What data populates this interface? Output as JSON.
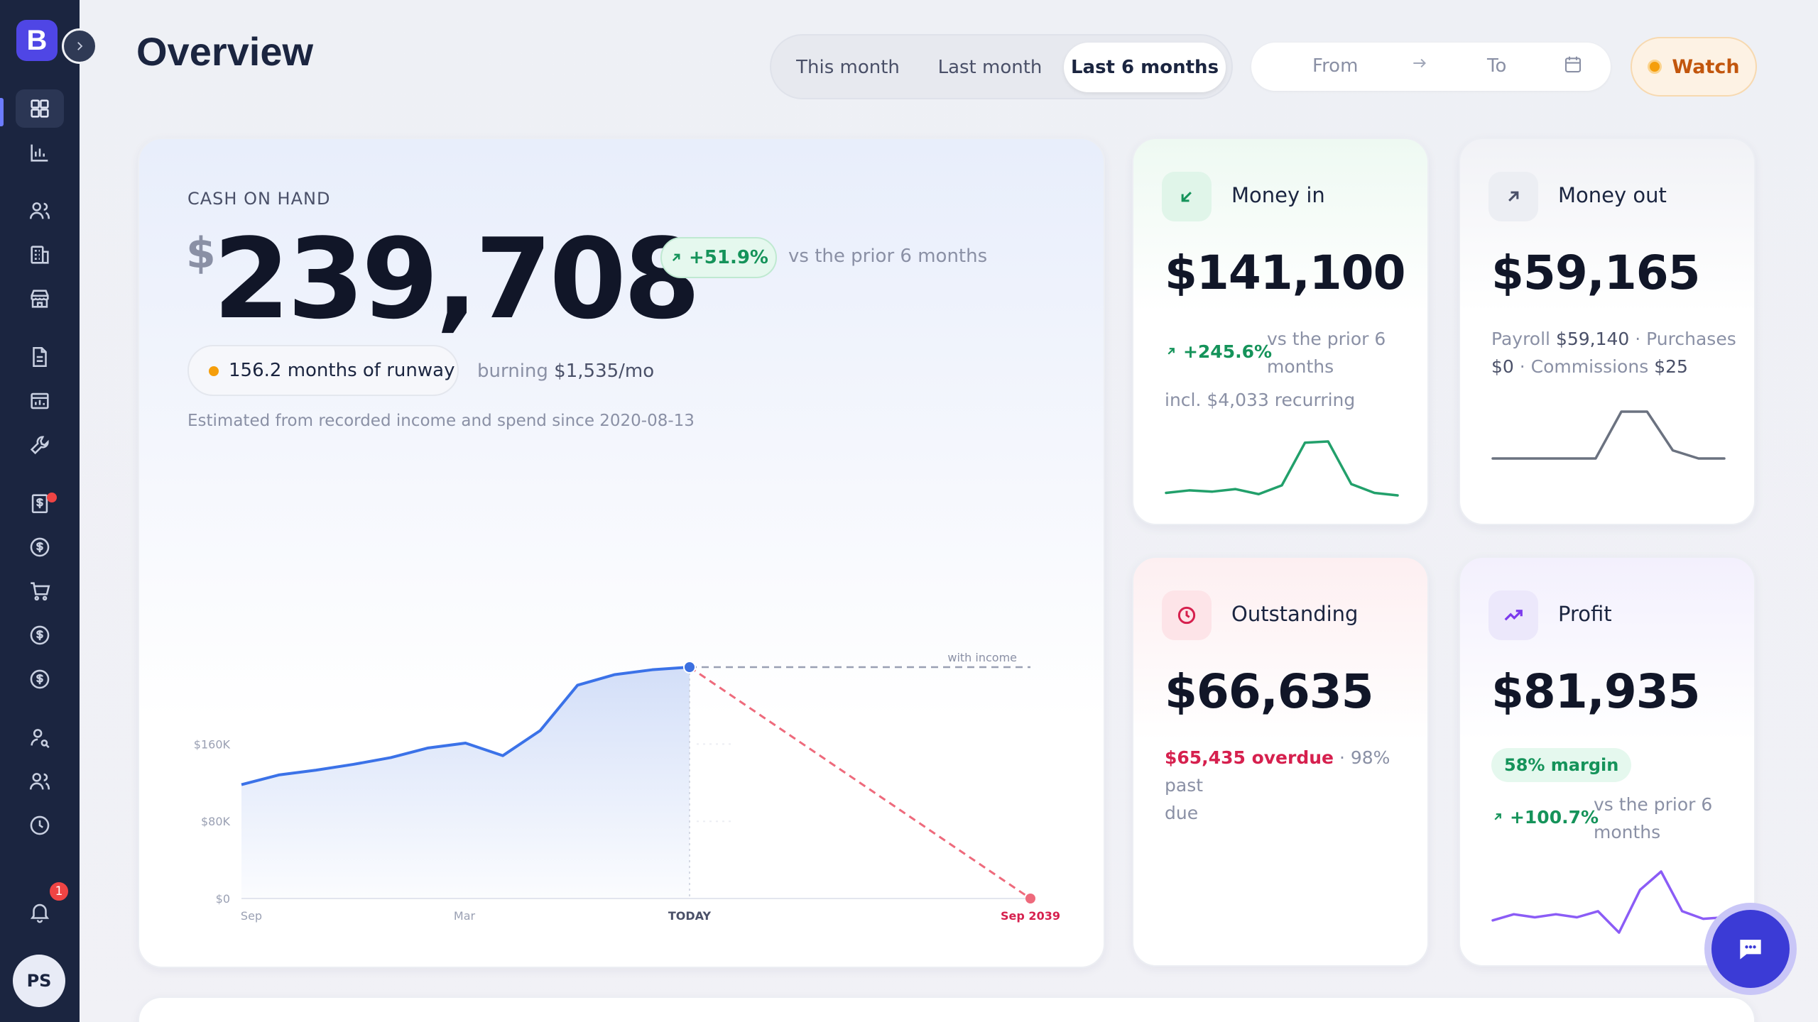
{
  "app": {
    "brand_letter": "B",
    "page_title": "Overview"
  },
  "sidebar": {
    "items": [
      {
        "icon": "grid-icon",
        "active": true
      },
      {
        "icon": "bar-chart-icon"
      },
      {
        "icon": "users-icon"
      },
      {
        "icon": "building-icon"
      },
      {
        "icon": "store-icon"
      },
      {
        "icon": "document-icon"
      },
      {
        "icon": "folder-chart-icon"
      },
      {
        "icon": "wrench-icon"
      },
      {
        "icon": "invoice-icon",
        "has_dot": true
      },
      {
        "icon": "dollar-icon"
      },
      {
        "icon": "cart-icon"
      },
      {
        "icon": "dollar-circle-icon"
      },
      {
        "icon": "dollar-circle-icon"
      },
      {
        "icon": "user-search-icon"
      },
      {
        "icon": "team-icon"
      },
      {
        "icon": "clock-icon"
      }
    ],
    "notifications_count": "1",
    "avatar_initials": "PS"
  },
  "header": {
    "periods": [
      "This month",
      "Last month",
      "Last 6 months"
    ],
    "active_period": "Last 6 months",
    "date_from_placeholder": "From",
    "date_to_placeholder": "To",
    "watch_label": "Watch"
  },
  "cash": {
    "label": "CASH ON HAND",
    "currency": "$",
    "value": "239,708",
    "change": "+51.9%",
    "change_note": "vs the prior 6 months",
    "runway": "156.2 months of runway",
    "burning_prefix": "burning",
    "burning_value": "$1,535/mo",
    "estimate_note": "Estimated from recorded income and spend since 2020-08-13"
  },
  "chart_data": {
    "type": "line",
    "y_ticks": [
      "$0",
      "$80K",
      "$160K"
    ],
    "ylim": [
      0,
      250000
    ],
    "x_labels": [
      "Sep",
      "Mar",
      "TODAY",
      "Sep 2039"
    ],
    "annotation": "with income",
    "series": [
      {
        "values": [
          118000,
          128000,
          133000,
          139000,
          146000,
          156000,
          161000,
          148000,
          174000,
          221000,
          232000,
          237000,
          239708
        ]
      },
      {
        "values": [
          239708,
          0
        ]
      },
      {
        "values": [
          239708,
          239708
        ]
      }
    ]
  },
  "money_in": {
    "title": "Money in",
    "value": "$141,100",
    "change": "+245.6%",
    "change_note_1": "vs the prior 6",
    "change_note_2": "months",
    "recurring": "incl. $4,033 recurring",
    "spark": [
      12,
      14,
      13,
      15,
      11,
      18,
      52,
      53,
      19,
      12,
      10
    ],
    "color": "#22a06b"
  },
  "money_out": {
    "title": "Money out",
    "value": "$59,165",
    "line1_a": "Payroll",
    "line1_b": "$59,140",
    "line1_c": "· Purchases",
    "line2_a": "$0",
    "line2_b": "· Commissions",
    "line2_c": "$25",
    "spark": [
      0,
      0,
      0,
      0,
      0,
      58,
      58,
      10,
      0,
      0
    ],
    "color": "#6b7280"
  },
  "outstanding": {
    "title": "Outstanding",
    "value": "$66,635",
    "overdue": "$65,435 overdue",
    "past_due_1": "· 98% past",
    "past_due_2": "due"
  },
  "profit": {
    "title": "Profit",
    "value": "$81,935",
    "margin": "58% margin",
    "change": "+100.7%",
    "change_note_1": "vs the prior 6",
    "change_note_2": "months",
    "spark": [
      20,
      24,
      22,
      24,
      22,
      26,
      12,
      40,
      52,
      26,
      21,
      22
    ],
    "color": "#8b5cf6"
  }
}
